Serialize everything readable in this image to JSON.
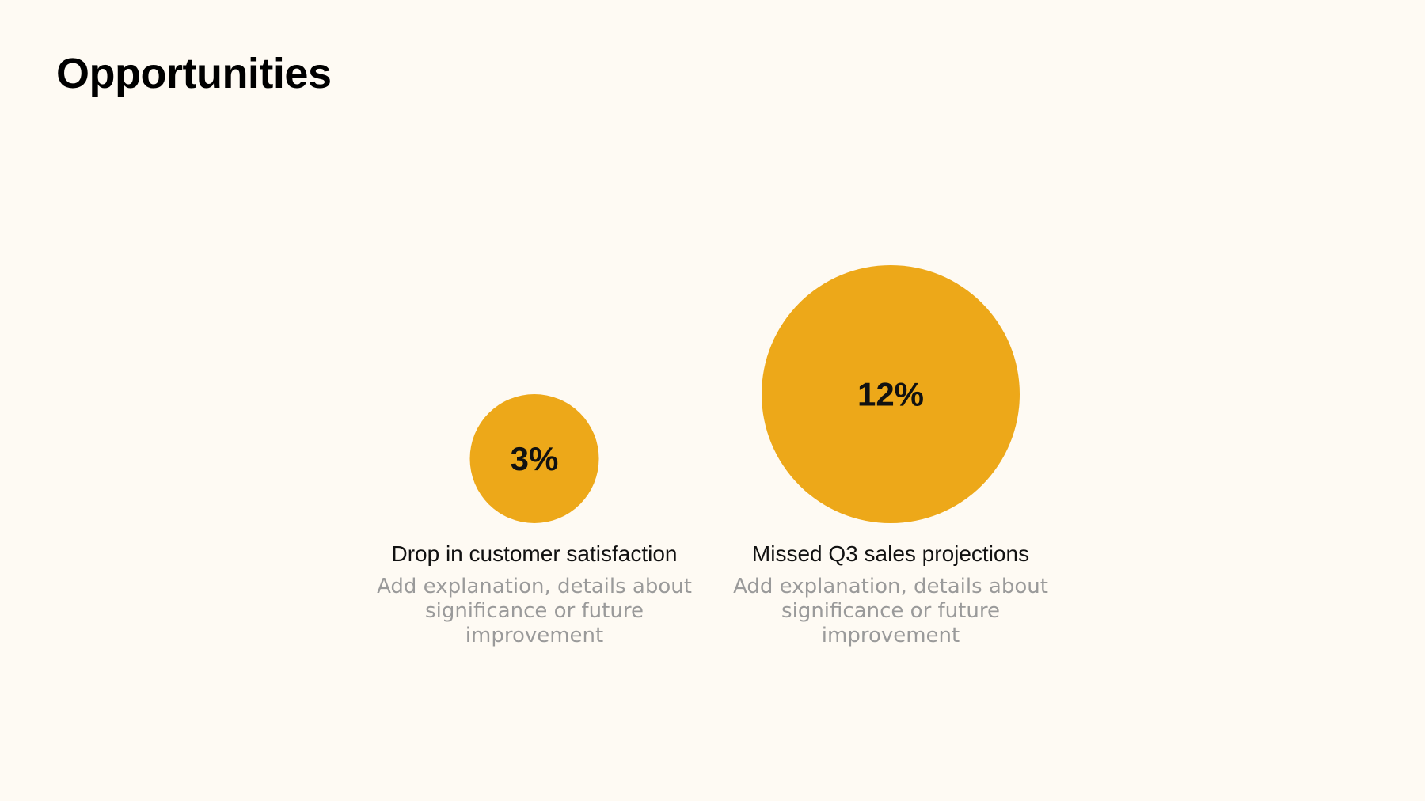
{
  "slide": {
    "title": "Opportunities"
  },
  "chart_data": {
    "type": "bubble",
    "title": "Opportunities",
    "items": [
      {
        "label": "Drop in customer satisfaction",
        "value": 3,
        "value_label": "3%",
        "description": "Add explanation, details about significance or future improvement"
      },
      {
        "label": "Missed Q3 sales projections",
        "value": 12,
        "value_label": "12%",
        "description": "Add explanation, details about significance or future improvement"
      }
    ],
    "colors": {
      "bubble": "#EDA819",
      "value_text": "#111111",
      "background": "#FEFAF3"
    }
  }
}
